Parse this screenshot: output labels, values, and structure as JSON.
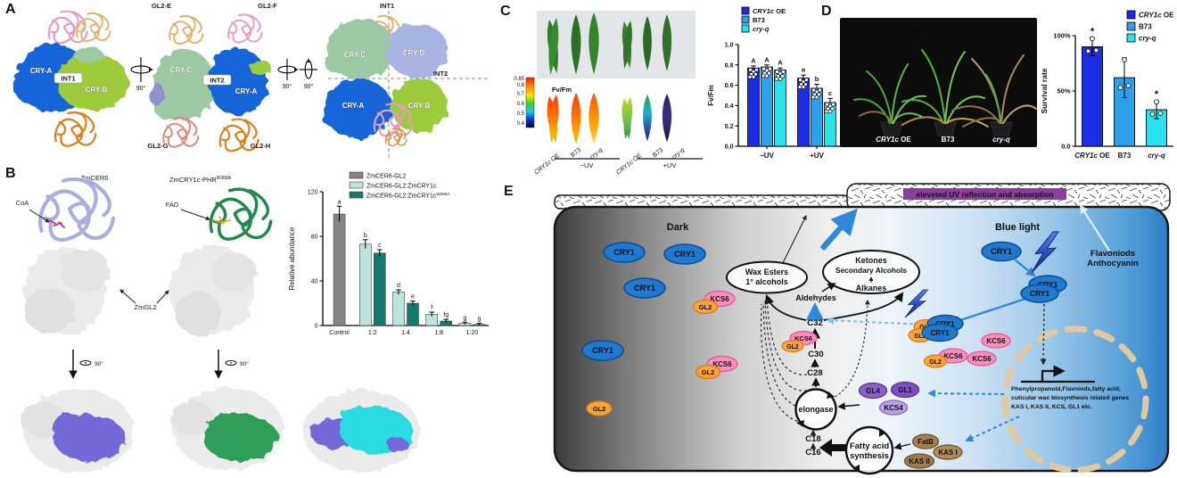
{
  "panelA": {
    "label": "A",
    "v1": {
      "cryA": "CRY-A",
      "int1": "INT1",
      "cryB": "CRY-B"
    },
    "v2": {
      "gl2e": "GL2-E",
      "gl2f": "GL2-F",
      "cryC": "CRY-C",
      "int2": "INT2",
      "cryA": "CRY-A",
      "gl2g": "GL2-G",
      "gl2h": "GL2-H"
    },
    "v3": {
      "int1": "INT1",
      "cryC": "CRY-C",
      "cryD": "CRY-D",
      "int2": "INT2",
      "cryA": "CRY-A",
      "cryB": "CRY-B"
    },
    "rot": [
      "90°",
      "90°",
      "90°"
    ]
  },
  "panelB": {
    "label": "B",
    "cer6": "ZmCER6",
    "coa": "CoA",
    "cry1c_phr": "ZmCRY1c-PHR",
    "cry1c_phr_sup": "W368A",
    "fad": "FAD",
    "zmgl2": "ZmGL2",
    "rot": "90°"
  },
  "panelC": {
    "label": "C",
    "fvfm": "Fv/Fm",
    "scale": [
      "0.85",
      "0.8",
      "0.7",
      "0.6",
      "0.5",
      "0.4"
    ],
    "groups": [
      {
        "i": "CRY1c",
        "n": " OE"
      },
      {
        "n": "B73"
      },
      {
        "i": "cry-q"
      },
      {
        "i": "CRY1c",
        "n": " OE"
      },
      {
        "n": "B73"
      },
      {
        "i": "cry-q"
      }
    ],
    "uv": [
      "−UV",
      "+UV"
    ]
  },
  "panelD": {
    "label": "D",
    "uv": "+UV",
    "labels": [
      {
        "i": "CRY1c",
        "n": " OE"
      },
      {
        "n": "B73"
      },
      {
        "i": "cry-q"
      }
    ]
  },
  "panelE": {
    "label": "E",
    "dark": "Dark",
    "blue_light": "Blue light",
    "banner": "eleveted UV reflection and absorption",
    "flavonoids": "Flavoniods",
    "anthocyanin": "Anthocyanin",
    "wax1": "Wax Esters",
    "wax2": "1° alcohols",
    "ket1": "Ketones",
    "ket2": "Secondary Alcohols",
    "ket3": "Alkanes",
    "aldehydes": "Aldehydes",
    "c32": "C32",
    "c30": "C30",
    "c28": "C28",
    "c18": "C18",
    "c16": "C16",
    "elongase": "elongase",
    "fa1": "Fatty acid",
    "fa2": "synthesis",
    "cry1": "CRY1",
    "gl2": "GL2",
    "kcs6": "KCS6",
    "gl4": "GL4",
    "gl1": "GL1",
    "kcs4": "KCS4",
    "fatb": "FatB",
    "kas1": "KAS I",
    "kas2": "KAS II",
    "gene1": "Phenylpropanoid,Flavniods,fatty acid,",
    "gene2": "cuticular wax biosynthesis related genes",
    "gene3": "KAS I, KAS II, KCS, GL1 etc."
  },
  "chart_data": [
    {
      "type": "bar",
      "panel": "B",
      "ylabel": "Relative abundance",
      "ylim": [
        0,
        120
      ],
      "yticks": [
        0,
        40,
        80,
        120
      ],
      "categories": [
        "Control",
        "1:2",
        "1:4",
        "1:8",
        "1:20"
      ],
      "series": [
        {
          "name": "ZmCER6-GL2",
          "sup": "",
          "color": "#828487",
          "values": [
            100,
            null,
            null,
            null,
            null
          ],
          "errors": [
            7,
            null,
            null,
            null,
            null
          ]
        },
        {
          "name": "ZmCER6-GL2:ZmCRY1c",
          "sup": "",
          "color": "#bce4dd",
          "values": [
            null,
            73,
            30,
            10,
            2
          ],
          "errors": [
            null,
            4,
            2,
            2,
            1
          ]
        },
        {
          "name": "ZmCER6-GL2:ZmCRY1c",
          "sup": "W368A",
          "color": "#157a6e",
          "values": [
            null,
            65,
            20,
            4,
            1
          ],
          "errors": [
            null,
            3,
            2,
            1.5,
            1
          ]
        }
      ],
      "letters": [
        [
          "a"
        ],
        [
          "b",
          "c"
        ],
        [
          "d",
          "e"
        ],
        [
          "f",
          "fg"
        ],
        [
          "g",
          "g"
        ]
      ]
    },
    {
      "type": "bar",
      "panel": "C",
      "ylabel": "Fv/Fm",
      "ylim": [
        0,
        1.0
      ],
      "yticks": [
        0.0,
        0.2,
        0.4,
        0.6,
        0.8,
        1.0
      ],
      "categories": [
        "−UV",
        "+UV"
      ],
      "series": [
        {
          "name": "CRY1c OE",
          "color": "#1d2de4",
          "values": [
            0.77,
            0.67
          ]
        },
        {
          "name": "B73",
          "color": "#2e9fe9",
          "values": [
            0.78,
            0.57
          ]
        },
        {
          "name": "cry-q",
          "color": "#29e2ee",
          "values": [
            0.75,
            0.43
          ]
        }
      ],
      "errors": [
        [
          0.02,
          0.02,
          0.02
        ],
        [
          0.03,
          0.04,
          0.04
        ]
      ],
      "letters": [
        [
          "A",
          "A",
          "A"
        ],
        [
          "a",
          "b",
          "c"
        ]
      ]
    },
    {
      "type": "bar",
      "panel": "D",
      "ylabel": "Survival rate",
      "ylim": [
        0,
        100
      ],
      "yticks": [
        0,
        50,
        100
      ],
      "ytick_labels": [
        "0.0",
        "50%",
        "100%"
      ],
      "categories": [
        "CRY1c OE",
        "B73",
        "cry-q"
      ],
      "values": [
        90,
        62,
        33
      ],
      "errors": [
        8,
        18,
        8
      ],
      "colors": [
        "#1d2de4",
        "#2e9fe9",
        "#29e2ee"
      ],
      "sig": [
        "*",
        "",
        "*"
      ],
      "legend": [
        "CRY1c OE",
        "B73",
        "cry-q"
      ]
    }
  ]
}
